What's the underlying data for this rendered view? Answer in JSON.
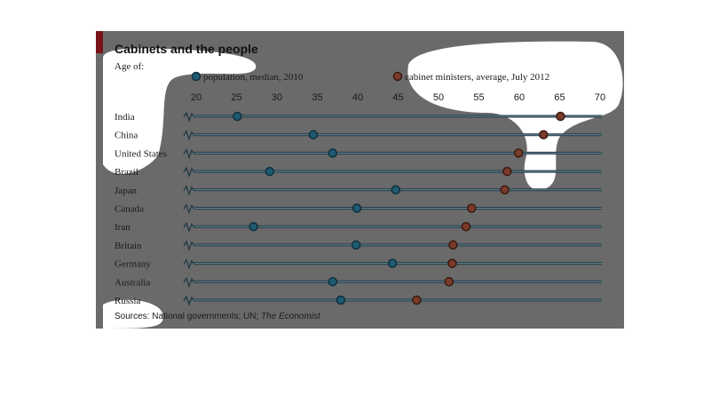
{
  "title": "Cabinets and the people",
  "age_of_label": "Age of:",
  "source_prefix": "Sources: National governments; UN; ",
  "source_publication": "The Economist",
  "colors": {
    "population": "#1e5a72",
    "ministers": "#7a3b2a",
    "panel": "#6a6a6a",
    "accent": "#7a1018"
  },
  "chart_data": {
    "type": "scatter",
    "title": "Cabinets and the people",
    "xlim": [
      20,
      70
    ],
    "x_ticks": [
      20,
      25,
      30,
      35,
      40,
      45,
      50,
      55,
      60,
      65,
      70
    ],
    "legend_position": "top",
    "categories": [
      "India",
      "China",
      "United States",
      "Brazil",
      "Japan",
      "Canada",
      "Iran",
      "Britain",
      "Germany",
      "Australia",
      "Russia"
    ],
    "series": [
      {
        "name": "population, median, 2010",
        "values": [
          25.1,
          34.5,
          36.9,
          29.1,
          44.7,
          39.9,
          27.1,
          39.8,
          44.3,
          36.9,
          37.9
        ]
      },
      {
        "name": "cabinet ministers, average, July 2012",
        "values": [
          65.1,
          63.0,
          59.9,
          58.5,
          58.2,
          54.1,
          53.4,
          51.8,
          51.7,
          51.3,
          47.3
        ]
      }
    ]
  }
}
